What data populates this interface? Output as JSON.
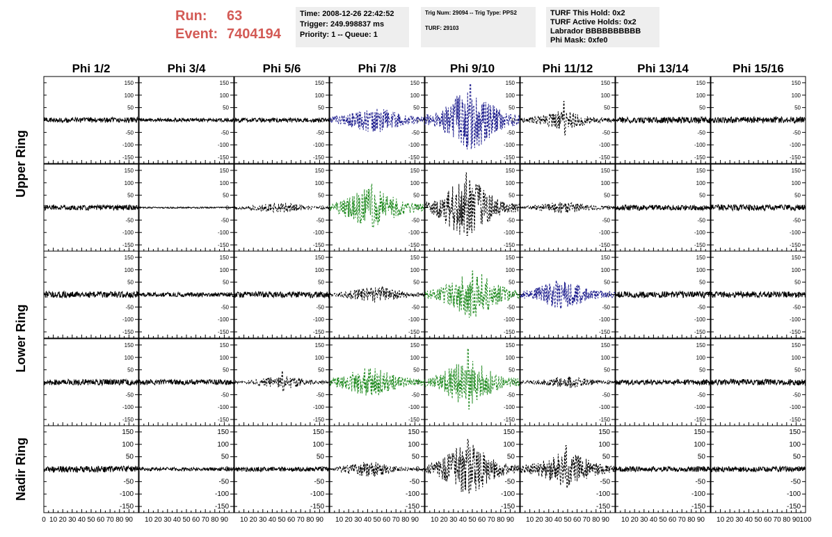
{
  "header": {
    "run_label": "Run:",
    "run_value": "63",
    "event_label": "Event:",
    "event_value": "7404194",
    "time": "Time: 2008-12-26 22:42:52",
    "trigger": "Trigger: 249.998837 ms",
    "priority": "Priority: 1 -- Queue: 1",
    "trig_num": "Trig Num: 29094 -- Trig Type: PPS2",
    "turf": "TURF: 29103",
    "turf_this_hold": "TURF This Hold: 0x2",
    "turf_active_holds": "TURF Active Holds: 0x2",
    "labrador": "Labrador BBBBBBBBBB",
    "phi_mask": "Phi Mask: 0xfe0"
  },
  "colors": {
    "run_text": "#d35a55",
    "box_bg": "#eeeeee",
    "default_trace": "#000000",
    "blue_trace": "#1a1a8c",
    "green_trace": "#1f8a1f"
  },
  "chart_data": {
    "type": "line",
    "columns": [
      "Phi 1/2",
      "Phi 3/4",
      "Phi 5/6",
      "Phi 7/8",
      "Phi 9/10",
      "Phi 11/12",
      "Phi 13/14",
      "Phi 15/16"
    ],
    "row_groups": [
      {
        "label": "Upper Ring",
        "rows": [
          0,
          1
        ]
      },
      {
        "label": "Lower Ring",
        "rows": [
          2,
          3
        ]
      },
      {
        "label": "Nadir Ring",
        "rows": [
          4
        ]
      }
    ],
    "xlim": [
      0,
      100
    ],
    "ylim": [
      -175,
      175
    ],
    "y_ticks": [
      150,
      100,
      50,
      0,
      -50,
      -100,
      -150
    ],
    "y_tick_labels": [
      "150",
      "100",
      "50",
      "0",
      "-50",
      "-100",
      "-150"
    ],
    "x_ticks": [
      0,
      10,
      20,
      30,
      40,
      50,
      60,
      70,
      80,
      90,
      100
    ],
    "x_tick_labels": [
      "0",
      "10",
      "20",
      "30",
      "40",
      "50",
      "60",
      "70",
      "80",
      "90",
      "100"
    ],
    "panels": [
      [
        {
          "amp": 12,
          "style": "solid",
          "color": "black"
        },
        {
          "amp": 8,
          "style": "solid",
          "color": "black"
        },
        {
          "amp": 10,
          "style": "solid",
          "color": "black"
        },
        {
          "amp": 35,
          "burst": 1.2,
          "style": "dashed",
          "color": "blue"
        },
        {
          "amp": 50,
          "burst": 2.4,
          "spike": 145,
          "style": "dashed",
          "color": "blue"
        },
        {
          "amp": 20,
          "burst": 1.6,
          "spike": 75,
          "style": "dashed",
          "color": "black"
        },
        {
          "amp": 14,
          "style": "solid",
          "color": "black"
        },
        {
          "amp": 14,
          "style": "solid",
          "color": "black"
        }
      ],
      [
        {
          "amp": 12,
          "style": "solid",
          "color": "black"
        },
        {
          "amp": 3,
          "style": "solid",
          "color": "black"
        },
        {
          "amp": 12,
          "burst": 1.5,
          "style": "dashed",
          "color": "black"
        },
        {
          "amp": 40,
          "burst": 1.8,
          "spike": 95,
          "style": "dashed",
          "color": "green"
        },
        {
          "amp": 45,
          "burst": 2.5,
          "spike": 140,
          "style": "dashed",
          "color": "black"
        },
        {
          "amp": 15,
          "burst": 1.3,
          "style": "dashed",
          "color": "black"
        },
        {
          "amp": 12,
          "style": "solid",
          "color": "black"
        },
        {
          "amp": 14,
          "style": "solid",
          "color": "black"
        }
      ],
      [
        {
          "amp": 14,
          "style": "solid",
          "color": "black"
        },
        {
          "amp": 10,
          "style": "solid",
          "color": "black"
        },
        {
          "amp": 14,
          "style": "solid",
          "color": "black"
        },
        {
          "amp": 18,
          "burst": 1.6,
          "style": "dashed",
          "color": "black"
        },
        {
          "amp": 40,
          "burst": 2.2,
          "spike": 95,
          "style": "dashed",
          "color": "green"
        },
        {
          "amp": 30,
          "burst": 1.8,
          "style": "dashed",
          "color": "blue"
        },
        {
          "amp": 14,
          "style": "solid",
          "color": "black"
        },
        {
          "amp": 14,
          "style": "solid",
          "color": "black"
        }
      ],
      [
        {
          "amp": 13,
          "style": "solid",
          "color": "black"
        },
        {
          "amp": 12,
          "style": "solid",
          "color": "black"
        },
        {
          "amp": 12,
          "burst": 2.0,
          "spike": 45,
          "style": "dashed",
          "color": "black"
        },
        {
          "amp": 35,
          "burst": 1.5,
          "style": "dashed",
          "color": "green"
        },
        {
          "amp": 40,
          "burst": 2.2,
          "spike": 135,
          "style": "dashed",
          "color": "green"
        },
        {
          "amp": 14,
          "burst": 1.4,
          "style": "dashed",
          "color": "black"
        },
        {
          "amp": 12,
          "style": "solid",
          "color": "black"
        },
        {
          "amp": 14,
          "style": "solid",
          "color": "black"
        }
      ],
      [
        {
          "amp": 14,
          "style": "solid",
          "color": "black"
        },
        {
          "amp": 8,
          "style": "solid",
          "color": "black"
        },
        {
          "amp": 10,
          "style": "solid",
          "color": "black"
        },
        {
          "amp": 15,
          "burst": 1.8,
          "style": "dashed",
          "color": "black"
        },
        {
          "amp": 40,
          "burst": 2.4,
          "spike": 120,
          "style": "dashed",
          "color": "black"
        },
        {
          "amp": 35,
          "burst": 1.8,
          "spike": 95,
          "style": "dashed",
          "color": "black"
        },
        {
          "amp": 12,
          "style": "solid",
          "color": "black"
        },
        {
          "amp": 12,
          "style": "solid",
          "color": "black"
        }
      ]
    ]
  }
}
